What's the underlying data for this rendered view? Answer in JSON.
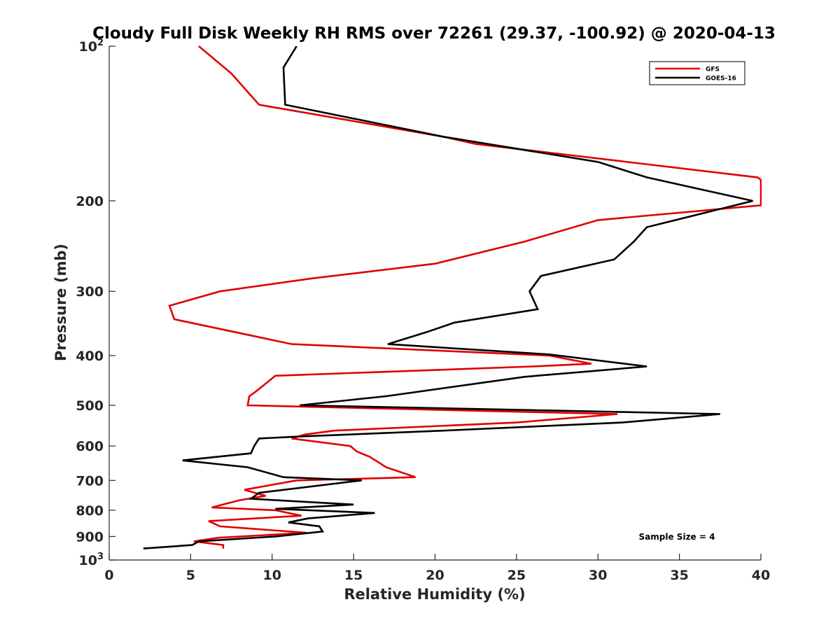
{
  "chart_data": {
    "type": "line",
    "title": "Cloudy Full Disk Weekly RH RMS over 72261 (29.37, -100.92) @ 2020-04-13",
    "xlabel": "Relative Humidity (%)",
    "ylabel": "Pressure (mb)",
    "xlim": [
      0,
      40
    ],
    "ylim": [
      100,
      1000
    ],
    "y_scale": "log",
    "y_reversed": true,
    "grid": false,
    "legend_position": "top-right",
    "x_ticks": [
      "0",
      "5",
      "10",
      "15",
      "20",
      "25",
      "30",
      "35",
      "40"
    ],
    "y_ticks": [
      {
        "value": 100,
        "base": "10",
        "exp": "2"
      },
      {
        "value": 200,
        "label": "200"
      },
      {
        "value": 300,
        "label": "300"
      },
      {
        "value": 400,
        "label": "400"
      },
      {
        "value": 500,
        "label": "500"
      },
      {
        "value": 600,
        "label": "600"
      },
      {
        "value": 700,
        "label": "700"
      },
      {
        "value": 800,
        "label": "800"
      },
      {
        "value": 900,
        "label": "900"
      },
      {
        "value": 1000,
        "base": "10",
        "exp": "3"
      }
    ],
    "annotation": "Sample Size = 4",
    "series": [
      {
        "name": "GFS",
        "color": "#e00000",
        "points": [
          [
            5.5,
            100
          ],
          [
            7.5,
            113
          ],
          [
            9.2,
            130
          ],
          [
            20.5,
            150
          ],
          [
            22.5,
            155
          ],
          [
            39.8,
            180
          ],
          [
            40.0,
            182
          ],
          [
            40.0,
            204
          ],
          [
            30.0,
            218
          ],
          [
            25.5,
            240
          ],
          [
            20.0,
            265
          ],
          [
            12.5,
            283
          ],
          [
            6.8,
            300
          ],
          [
            3.7,
            320
          ],
          [
            4.0,
            340
          ],
          [
            11.2,
            380
          ],
          [
            27.0,
            400
          ],
          [
            29.6,
            415
          ],
          [
            26.0,
            420
          ],
          [
            10.2,
            438
          ],
          [
            9.0,
            470
          ],
          [
            8.6,
            480
          ],
          [
            8.5,
            500
          ],
          [
            31.2,
            520
          ],
          [
            25.0,
            540
          ],
          [
            13.8,
            560
          ],
          [
            12.0,
            570
          ],
          [
            11.2,
            580
          ],
          [
            14.8,
            600
          ],
          [
            15.2,
            615
          ],
          [
            16.0,
            630
          ],
          [
            17.0,
            660
          ],
          [
            18.8,
            690
          ],
          [
            11.5,
            700
          ],
          [
            8.3,
            730
          ],
          [
            9.6,
            750
          ],
          [
            8.0,
            765
          ],
          [
            6.3,
            790
          ],
          [
            10.2,
            800
          ],
          [
            11.8,
            820
          ],
          [
            6.1,
            840
          ],
          [
            6.8,
            860
          ],
          [
            12.1,
            885
          ],
          [
            6.7,
            905
          ],
          [
            5.2,
            920
          ],
          [
            7.0,
            935
          ],
          [
            7.0,
            950
          ]
        ]
      },
      {
        "name": "GOES-16",
        "color": "#000000",
        "points": [
          [
            11.5,
            100
          ],
          [
            10.7,
            110
          ],
          [
            10.8,
            130
          ],
          [
            20.5,
            150
          ],
          [
            30.0,
            168
          ],
          [
            33.0,
            180
          ],
          [
            39.5,
            200
          ],
          [
            33.0,
            225
          ],
          [
            32.2,
            240
          ],
          [
            31.0,
            260
          ],
          [
            26.5,
            280
          ],
          [
            25.8,
            300
          ],
          [
            26.3,
            325
          ],
          [
            21.2,
            345
          ],
          [
            19.5,
            360
          ],
          [
            17.1,
            380
          ],
          [
            27.0,
            398
          ],
          [
            33.0,
            420
          ],
          [
            25.5,
            440
          ],
          [
            17.0,
            480
          ],
          [
            11.7,
            500
          ],
          [
            37.5,
            520
          ],
          [
            31.5,
            540
          ],
          [
            20.5,
            560
          ],
          [
            11.7,
            575
          ],
          [
            9.2,
            580
          ],
          [
            8.9,
            600
          ],
          [
            8.7,
            620
          ],
          [
            4.5,
            640
          ],
          [
            8.5,
            660
          ],
          [
            10.7,
            690
          ],
          [
            15.5,
            700
          ],
          [
            9.2,
            740
          ],
          [
            8.7,
            760
          ],
          [
            15.0,
            780
          ],
          [
            10.2,
            795
          ],
          [
            16.3,
            810
          ],
          [
            12.2,
            830
          ],
          [
            11.0,
            845
          ],
          [
            12.9,
            860
          ],
          [
            13.1,
            880
          ],
          [
            10.2,
            900
          ],
          [
            5.5,
            920
          ],
          [
            5.1,
            935
          ],
          [
            2.1,
            950
          ]
        ]
      }
    ]
  }
}
